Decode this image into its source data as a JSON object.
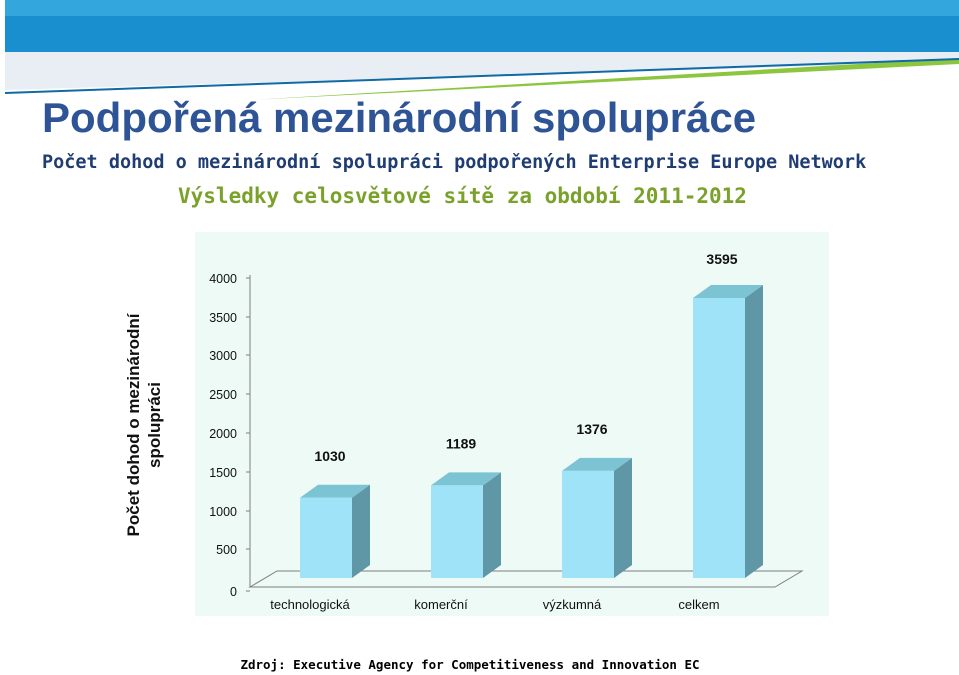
{
  "slide": {
    "title": "Podpořená mezinárodní spolupráce",
    "subtitle": "Počet dohod o mezinárodní spolupráci podpořených Enterprise Europe Network",
    "subtitle2": "Výsledky celosvětové sítě za období 2011-2012",
    "source": "Zdroj: Executive Agency for Competitiveness and Innovation EC"
  },
  "colors": {
    "title": "#2f5496",
    "subtitle2": "#7aa22a",
    "bar_front": "#9ee3f7",
    "bar_side": "#5f97a6",
    "bar_top": "#7cc3d3",
    "plot_bg": "#eefaf6"
  },
  "chart_data": {
    "type": "bar",
    "style": "3d-column",
    "categories": [
      "technologická",
      "komerční",
      "výzkumná",
      "celkem"
    ],
    "values": [
      1030,
      1189,
      1376,
      3595
    ],
    "data_labels": [
      "1030",
      "1189",
      "1376",
      "3595"
    ],
    "ylabel": "Počet dohod o mezinárodní spolupráci",
    "ylim": [
      0,
      4000
    ],
    "yticks": [
      "0",
      "500",
      "1000",
      "1500",
      "2000",
      "2500",
      "3000",
      "3500",
      "4000"
    ],
    "grid": false,
    "legend": "none"
  }
}
